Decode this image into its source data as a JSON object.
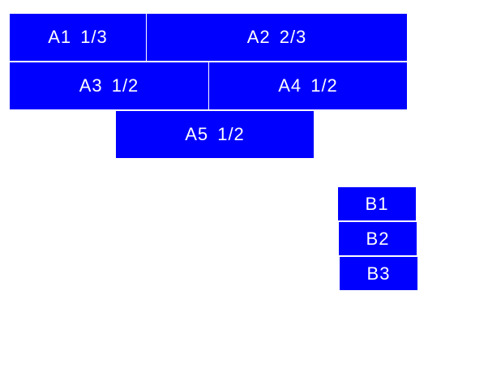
{
  "color": "#0000ff",
  "group_a": [
    "A1 1/3",
    "A2 2/3",
    "A3 1/2",
    "A4 1/2",
    "A5 1/2"
  ],
  "group_b": [
    "B1",
    "B2",
    "B3"
  ]
}
